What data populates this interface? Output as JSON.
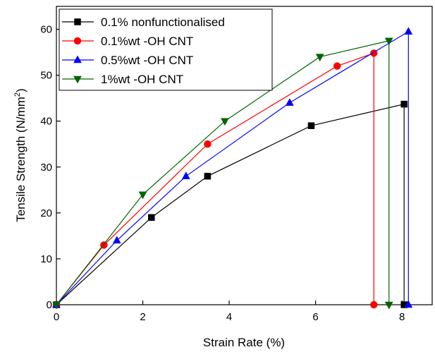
{
  "chart_data": {
    "type": "line",
    "title": "",
    "xlabel": "Strain Rate (%)",
    "ylabel_main": "Tensile Strength (N/mm",
    "ylabel_sup": "2",
    "ylabel_tail": ")",
    "xlim": [
      0,
      8.7
    ],
    "ylim": [
      0,
      65
    ],
    "x_ticks": [
      0,
      2,
      4,
      6,
      8
    ],
    "y_ticks": [
      0,
      10,
      20,
      30,
      40,
      50,
      60
    ],
    "x_tick_labels": [
      "0",
      "2",
      "4",
      "6",
      "8"
    ],
    "y_tick_labels": [
      "0",
      "10",
      "20",
      "30",
      "40",
      "50",
      "60"
    ],
    "grid": false,
    "legend_position": "top-left",
    "series": [
      {
        "name": "0.1% nonfunctionalised",
        "color": "#000000",
        "marker": "square",
        "points": [
          [
            0,
            0
          ],
          [
            2.2,
            19
          ],
          [
            3.5,
            28
          ],
          [
            5.9,
            39
          ],
          [
            8.05,
            43.7
          ],
          [
            8.05,
            0
          ]
        ]
      },
      {
        "name": "0.1%wt -OH CNT",
        "color": "#ff0000",
        "marker": "circle",
        "points": [
          [
            0,
            0
          ],
          [
            1.1,
            13
          ],
          [
            3.5,
            35
          ],
          [
            6.5,
            52
          ],
          [
            7.35,
            54.8
          ],
          [
            7.35,
            0
          ]
        ]
      },
      {
        "name": "0.5%wt -OH CNT",
        "color": "#0000ff",
        "marker": "triangle-up",
        "points": [
          [
            0,
            0
          ],
          [
            1.4,
            14
          ],
          [
            3.0,
            28
          ],
          [
            5.4,
            44
          ],
          [
            8.15,
            59.5
          ],
          [
            8.15,
            0
          ]
        ]
      },
      {
        "name": "1%wt -OH CNT",
        "color": "#006400",
        "marker": "triangle-down",
        "points": [
          [
            0,
            0
          ],
          [
            2.0,
            24
          ],
          [
            3.9,
            40
          ],
          [
            6.1,
            54
          ],
          [
            7.7,
            57.5
          ],
          [
            7.7,
            0
          ]
        ]
      }
    ]
  }
}
